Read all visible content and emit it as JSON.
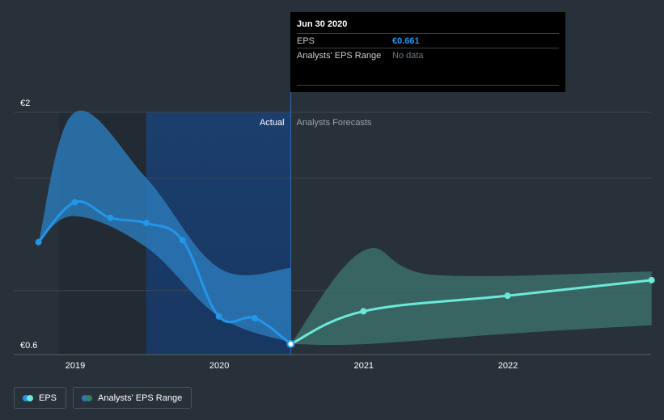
{
  "chart_data": {
    "type": "line",
    "y_tick_labels": [
      "€2",
      "€0.6"
    ],
    "ylim": [
      0.6,
      2.0
    ],
    "x_tick_labels": [
      "2019",
      "2020",
      "2021",
      "2022"
    ],
    "divider_date": "2020-06-30",
    "period_labels": {
      "actual": "Actual",
      "forecast": "Analysts Forecasts"
    },
    "series": [
      {
        "name": "EPS",
        "color": "#2396ea",
        "points": [
          {
            "x": "2018-09-30",
            "y": 1.25
          },
          {
            "x": "2018-12-31",
            "y": 1.48
          },
          {
            "x": "2019-03-31",
            "y": 1.39
          },
          {
            "x": "2019-06-30",
            "y": 1.36
          },
          {
            "x": "2019-09-30",
            "y": 1.26
          },
          {
            "x": "2019-12-31",
            "y": 0.82
          },
          {
            "x": "2020-03-31",
            "y": 0.81
          },
          {
            "x": "2020-06-30",
            "y": 0.661
          }
        ]
      },
      {
        "name": "EPS Forecast",
        "color": "#6de9db",
        "points": [
          {
            "x": "2020-06-30",
            "y": 0.661
          },
          {
            "x": "2020-12-31",
            "y": 0.85
          },
          {
            "x": "2021-12-31",
            "y": 0.94
          },
          {
            "x": "2022-12-31",
            "y": 1.03
          }
        ]
      }
    ],
    "ranges": [
      {
        "name": "Actual Range",
        "color": "#2a78b6",
        "upper": [
          {
            "x": "2018-09-30",
            "y": 1.25
          },
          {
            "x": "2018-12-31",
            "y": 2.0
          },
          {
            "x": "2019-06-30",
            "y": 1.62
          },
          {
            "x": "2019-12-31",
            "y": 1.1
          },
          {
            "x": "2020-06-30",
            "y": 1.1
          }
        ],
        "lower": [
          {
            "x": "2018-09-30",
            "y": 1.25
          },
          {
            "x": "2018-12-31",
            "y": 1.4
          },
          {
            "x": "2019-06-30",
            "y": 1.22
          },
          {
            "x": "2019-12-31",
            "y": 0.82
          },
          {
            "x": "2020-06-30",
            "y": 0.67
          }
        ]
      },
      {
        "name": "Analysts' EPS Range",
        "color": "#3d776f",
        "upper": [
          {
            "x": "2020-06-30",
            "y": 0.661
          },
          {
            "x": "2020-12-31",
            "y": 1.2
          },
          {
            "x": "2021-06-30",
            "y": 1.06
          },
          {
            "x": "2022-12-31",
            "y": 1.08
          }
        ],
        "lower": [
          {
            "x": "2020-06-30",
            "y": 0.661
          },
          {
            "x": "2020-12-31",
            "y": 0.66
          },
          {
            "x": "2021-12-31",
            "y": 0.72
          },
          {
            "x": "2022-12-31",
            "y": 0.77
          }
        ]
      }
    ]
  },
  "tooltip": {
    "date": "Jun 30 2020",
    "rows": [
      {
        "label": "EPS",
        "value": "€0.661"
      },
      {
        "label": "Analysts' EPS Range",
        "value": "No data"
      }
    ]
  },
  "legend": {
    "items": [
      {
        "label": "EPS",
        "colors": [
          "#2396ea",
          "#6de9db"
        ]
      },
      {
        "label": "Analysts' EPS Range",
        "colors": [
          "#2a78b6",
          "#3d776f"
        ]
      }
    ]
  }
}
